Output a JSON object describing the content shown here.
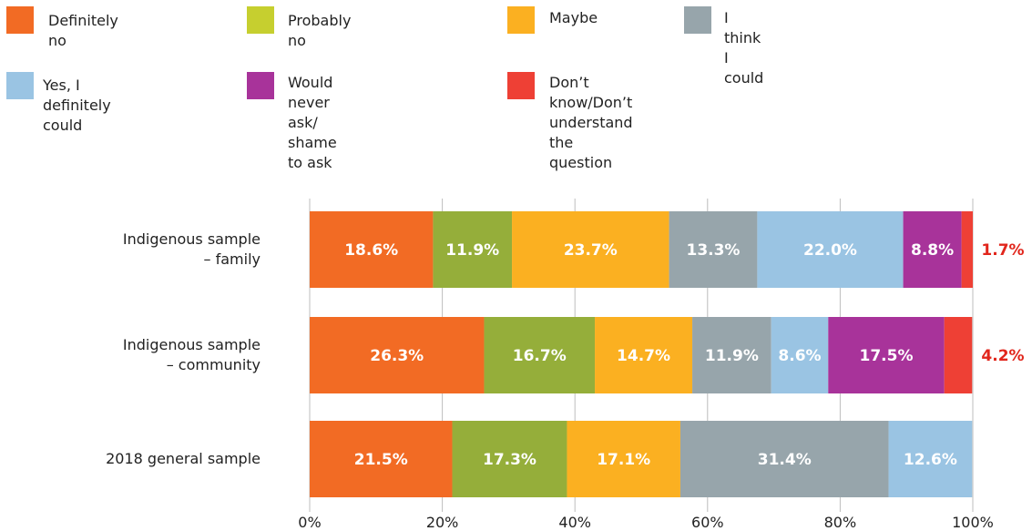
{
  "legend": {
    "items": [
      {
        "label": "Definitely no",
        "color": "#f26b24"
      },
      {
        "label": "Probably no",
        "color": "#c6cf2f"
      },
      {
        "label": "Maybe",
        "color": "#fbb021"
      },
      {
        "label": "I think I could",
        "color": "#97a5ab"
      },
      {
        "label": "Yes, I definitely could",
        "color": "#9ac4e3"
      },
      {
        "label": "Would never ask/\nshame to ask",
        "color": "#a8339a"
      },
      {
        "label": "Don’t know/Don’t understand\nthe question",
        "color": "#ee4035"
      }
    ]
  },
  "chart_data": {
    "type": "bar",
    "orientation": "horizontal",
    "stacked": true,
    "categories": [
      "Indigenous sample\n– family",
      "Indigenous sample\n– community",
      "2018 general sample"
    ],
    "series": [
      {
        "name": "Definitely no",
        "color": "#f26b24",
        "values": [
          18.6,
          26.3,
          21.5
        ],
        "labels": [
          "18.6%",
          "26.3%",
          "21.5%"
        ]
      },
      {
        "name": "Probably no",
        "color": "#95ae3a",
        "values": [
          11.9,
          16.7,
          17.3
        ],
        "labels": [
          "11.9%",
          "16.7%",
          "17.3%"
        ]
      },
      {
        "name": "Maybe",
        "color": "#fbb021",
        "values": [
          23.7,
          14.7,
          17.1
        ],
        "labels": [
          "23.7%",
          "14.7%",
          "17.1%"
        ]
      },
      {
        "name": "I think I could",
        "color": "#97a5ab",
        "values": [
          13.3,
          11.9,
          31.4
        ],
        "labels": [
          "13.3%",
          "11.9%",
          "31.4%"
        ]
      },
      {
        "name": "Yes, I definitely could",
        "color": "#9ac4e3",
        "values": [
          22.0,
          8.6,
          12.6
        ],
        "labels": [
          "22.0%",
          "8.6%",
          "12.6%"
        ]
      },
      {
        "name": "Would never ask/ shame to ask",
        "color": "#a8339a",
        "values": [
          8.8,
          17.5,
          0
        ],
        "labels": [
          "8.8%",
          "17.5%",
          ""
        ]
      },
      {
        "name": "Don’t know/Don’t understand the question",
        "color": "#ee4035",
        "values": [
          1.7,
          4.2,
          0
        ],
        "labels": [
          "1.7%",
          "4.2%",
          ""
        ],
        "label_outside": true
      }
    ],
    "xlim": [
      0,
      100
    ],
    "xticks": [
      "0%",
      "20%",
      "40%",
      "60%",
      "80%",
      "100%"
    ],
    "grid": true,
    "outside_label_color": "#e1261c"
  }
}
